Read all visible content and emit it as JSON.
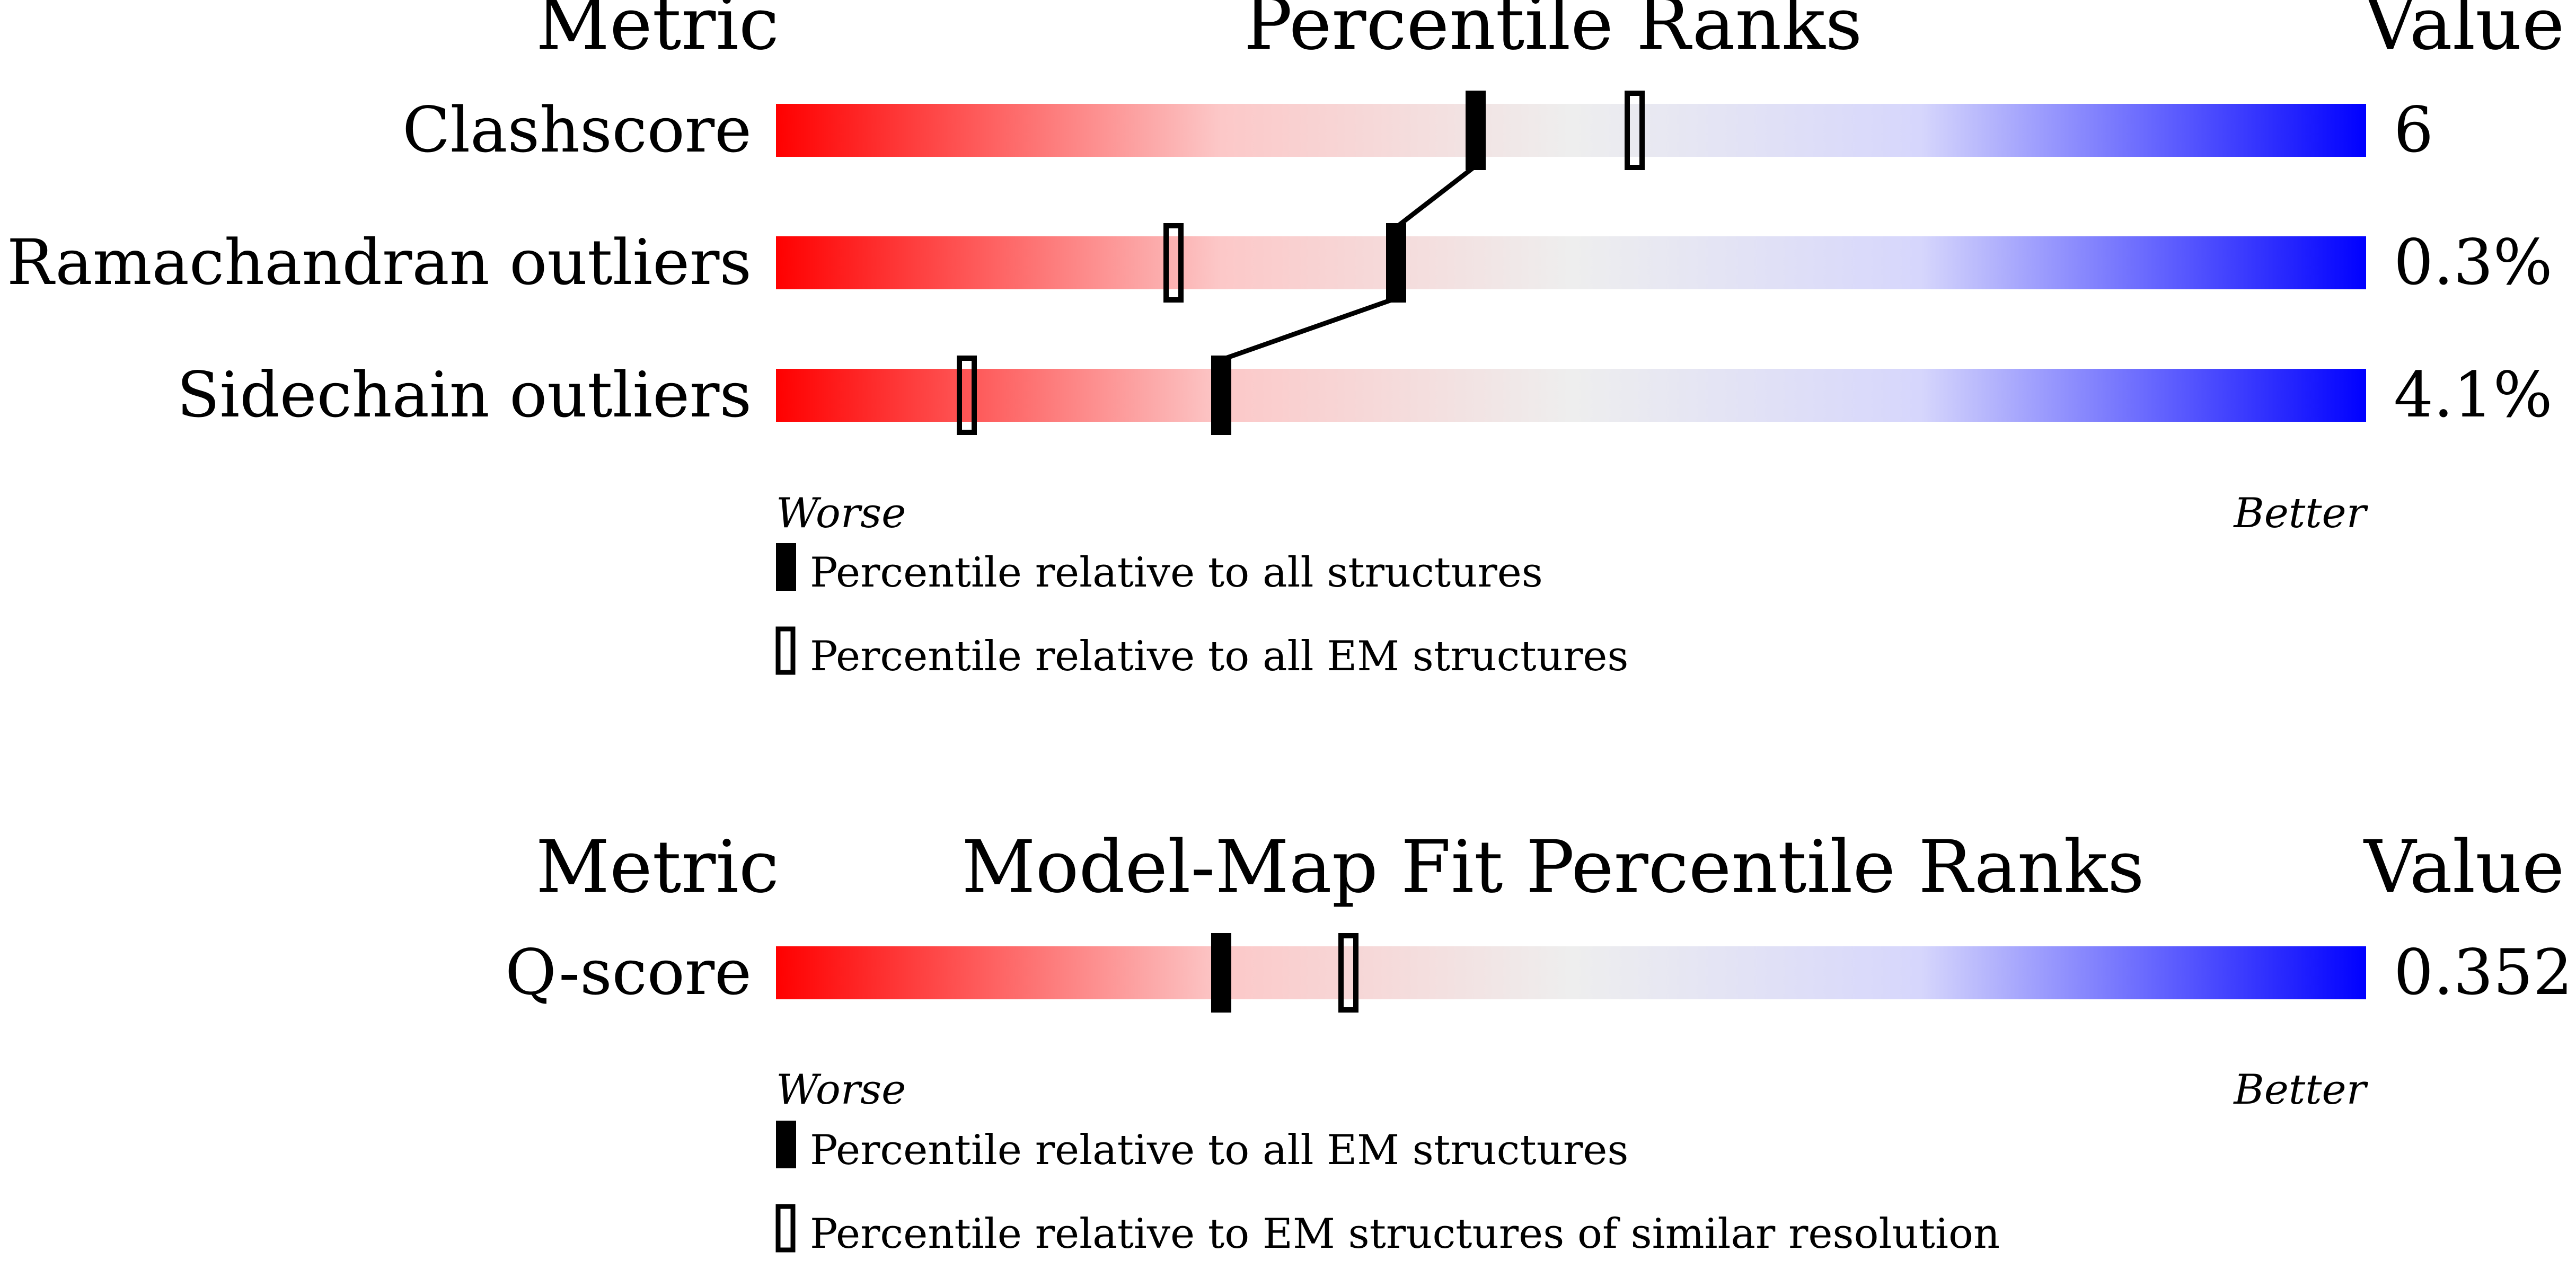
{
  "chart_data": [
    {
      "type": "bar",
      "panel": "validation",
      "headers": {
        "metric": "Metric",
        "title": "Percentile Ranks",
        "value": "Value"
      },
      "metrics": [
        {
          "name": "Clashscore",
          "value": "6",
          "percentile_all": 44,
          "percentile_em": 54
        },
        {
          "name": "Ramachandran outliers",
          "value": "0.3%",
          "percentile_all": 39,
          "percentile_em": 25
        },
        {
          "name": "Sidechain outliers",
          "value": "4.1%",
          "percentile_all": 28,
          "percentile_em": 12
        }
      ],
      "axis": {
        "min": 0,
        "max": 100,
        "left_label": "Worse",
        "right_label": "Better"
      },
      "legend": [
        {
          "marker": "filled",
          "label": "Percentile relative to all structures"
        },
        {
          "marker": "open",
          "label": "Percentile relative to all EM structures"
        }
      ],
      "connect_filled_markers": true
    },
    {
      "type": "bar",
      "panel": "model-map-fit",
      "headers": {
        "metric": "Metric",
        "title": "Model-Map Fit Percentile Ranks",
        "value": "Value"
      },
      "metrics": [
        {
          "name": "Q-score",
          "value": "0.352",
          "percentile_all": 28,
          "percentile_em": 36
        }
      ],
      "axis": {
        "min": 0,
        "max": 100,
        "left_label": "Worse",
        "right_label": "Better"
      },
      "legend": [
        {
          "marker": "filled",
          "label": "Percentile relative to all EM structures"
        },
        {
          "marker": "open",
          "label": "Percentile relative to EM structures of similar resolution"
        }
      ],
      "connect_filled_markers": false
    }
  ],
  "colors": {
    "worse": "#ff0000",
    "mid": "#eeeeee",
    "better": "#0000ff",
    "marker": "#000000"
  }
}
